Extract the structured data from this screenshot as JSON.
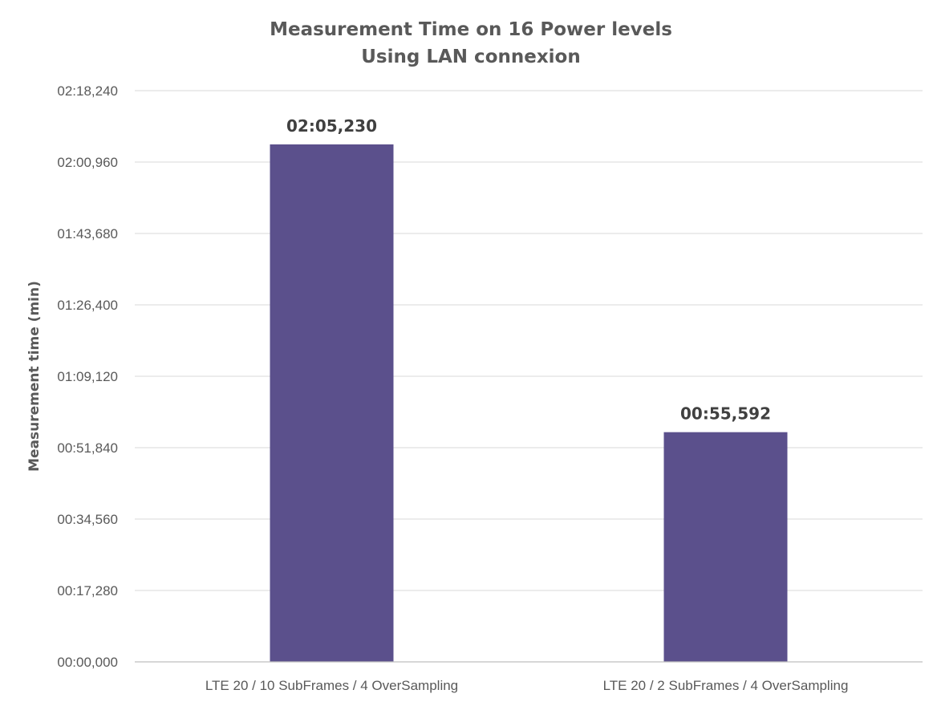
{
  "chart_data": {
    "type": "bar",
    "title_lines": [
      "Measurement Time on 16 Power levels",
      "Using LAN connexion"
    ],
    "ylabel": "Measurement time (min)",
    "xlabel": "",
    "categories": [
      "LTE 20 / 10 SubFrames / 4 OverSampling",
      "LTE 20 / 2 SubFrames / 4 OverSampling"
    ],
    "values": [
      125.23,
      55.592
    ],
    "value_labels": [
      "02:05,230",
      "00:55,592"
    ],
    "ylim": [
      0,
      138.24
    ],
    "yticks": [
      0,
      17.28,
      34.56,
      51.84,
      69.12,
      86.4,
      103.68,
      120.96,
      138.24
    ],
    "ytick_labels": [
      "00:00,000",
      "00:17,280",
      "00:34,560",
      "00:51,840",
      "01:09,120",
      "01:26,400",
      "01:43,680",
      "02:00,960",
      "02:18,240"
    ],
    "bar_color": "#5b508c",
    "grid": true,
    "legend": "none"
  }
}
